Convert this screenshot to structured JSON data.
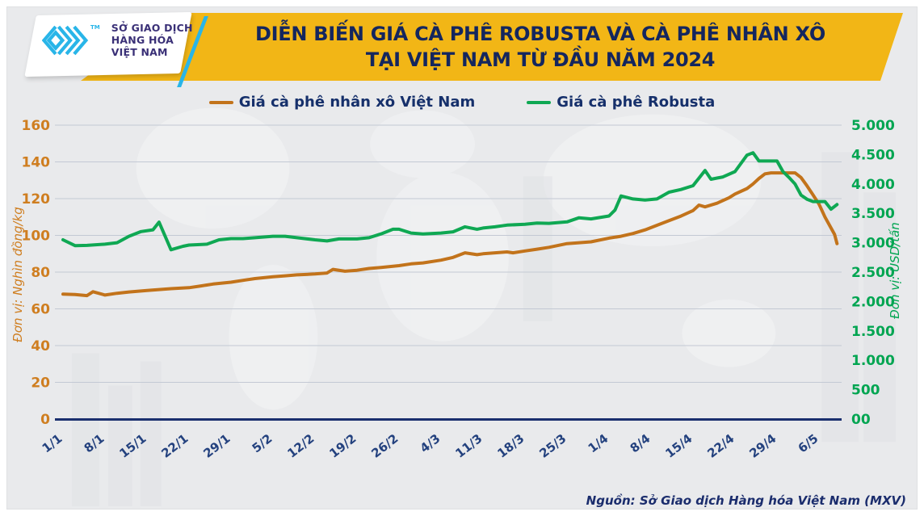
{
  "logo": {
    "trademark": "TM",
    "org_lines": [
      "SỞ GIAO DỊCH",
      "HÀNG HÓA",
      "VIỆT NAM"
    ]
  },
  "header": {
    "title_line1": "DIỄN BIẾN GIÁ CÀ PHÊ ROBUSTA VÀ CÀ PHÊ NHÂN XÔ",
    "title_line2": "TẠI VIỆT NAM TỪ ĐẦU NĂM 2024"
  },
  "footer": {
    "source": "Nguồn: Sở Giao dịch Hàng hóa Việt Nam (MXV)"
  },
  "colors": {
    "banner_yellow": "#f2b616",
    "title_navy": "#14265e",
    "axis_navy": "#1a2f6e",
    "xlabel_navy": "#23417e",
    "gridline": "#c3c9d4",
    "cyan_brand": "#29b5e8",
    "logo_text": "#3a3077"
  },
  "chart_data": {
    "type": "line",
    "title": "DIỄN BIẾN GIÁ CÀ PHÊ ROBUSTA VÀ CÀ PHÊ NHÂN XÔ TẠI VIỆT NAM TỪ ĐẦU NĂM 2024",
    "grid": true,
    "legend_position": "top",
    "x_axis": {
      "tick_labels": [
        "1/1",
        "8/1",
        "15/1",
        "22/1",
        "29/1",
        "5/2",
        "12/2",
        "19/2",
        "26/2",
        "4/3",
        "11/3",
        "18/3",
        "25/3",
        "1/4",
        "8/4",
        "15/4",
        "22/4",
        "29/4",
        "6/5"
      ],
      "days_per_tick": 7
    },
    "y_left": {
      "unit_label": "Đơn vị: Nghìn đồng/kg",
      "color_label": "#cf7e20",
      "min": 0,
      "max": 160,
      "ticks": [
        0,
        20,
        40,
        60,
        80,
        100,
        120,
        140,
        160
      ]
    },
    "y_right": {
      "unit_label": "Đơn vị: USD/tấn",
      "color_label": "#00a551",
      "min": 0,
      "max": 5000,
      "tick_step": 500,
      "ticks": [
        "00",
        "500",
        "1.000",
        "1.500",
        "2.000",
        "2.500",
        "3.000",
        "3.500",
        "4.000",
        "4.500",
        "5.000"
      ]
    },
    "series": [
      {
        "name": "Giá cà phê nhân xô Việt Nam",
        "axis": "left",
        "unit": "nghìn đồng/kg",
        "color": "#c2731b",
        "points_day_value": [
          [
            0,
            68
          ],
          [
            2,
            67.8
          ],
          [
            4,
            67.2
          ],
          [
            5,
            69.3
          ],
          [
            7,
            67.5
          ],
          [
            9,
            68.5
          ],
          [
            11,
            69.2
          ],
          [
            14,
            70
          ],
          [
            16,
            70.5
          ],
          [
            18,
            71
          ],
          [
            21,
            71.5
          ],
          [
            23,
            72.5
          ],
          [
            25,
            73.5
          ],
          [
            28,
            74.5
          ],
          [
            30,
            75.5
          ],
          [
            32,
            76.5
          ],
          [
            35,
            77.5
          ],
          [
            37,
            78
          ],
          [
            39,
            78.5
          ],
          [
            42,
            79
          ],
          [
            44,
            79.5
          ],
          [
            45,
            81.5
          ],
          [
            47,
            80.5
          ],
          [
            49,
            81
          ],
          [
            51,
            82
          ],
          [
            53,
            82.5
          ],
          [
            56,
            83.5
          ],
          [
            58,
            84.5
          ],
          [
            60,
            85
          ],
          [
            63,
            86.5
          ],
          [
            65,
            88
          ],
          [
            67,
            90.5
          ],
          [
            69,
            89.5
          ],
          [
            70,
            90
          ],
          [
            72,
            90.5
          ],
          [
            74,
            91
          ],
          [
            75,
            90.5
          ],
          [
            77,
            91.5
          ],
          [
            79,
            92.5
          ],
          [
            81,
            93.5
          ],
          [
            84,
            95.5
          ],
          [
            86,
            96
          ],
          [
            88,
            96.5
          ],
          [
            91,
            98.5
          ],
          [
            93,
            99.5
          ],
          [
            95,
            101
          ],
          [
            97,
            103
          ],
          [
            99,
            105.5
          ],
          [
            101,
            108
          ],
          [
            103,
            110.5
          ],
          [
            105,
            113.5
          ],
          [
            106,
            116.5
          ],
          [
            107,
            115.5
          ],
          [
            109,
            117.5
          ],
          [
            111,
            120.5
          ],
          [
            112,
            122.5
          ],
          [
            114,
            125.5
          ],
          [
            115,
            128
          ],
          [
            116,
            131
          ],
          [
            117,
            133.5
          ],
          [
            118,
            134
          ],
          [
            120,
            134
          ],
          [
            122,
            134
          ],
          [
            123,
            131.5
          ],
          [
            124,
            127
          ],
          [
            125,
            122
          ],
          [
            126,
            117
          ],
          [
            127,
            110
          ],
          [
            128,
            104
          ],
          [
            128.6,
            100.5
          ],
          [
            129,
            95.5
          ]
        ]
      },
      {
        "name": "Giá cà phê Robusta",
        "axis": "right",
        "unit": "USD/tấn",
        "color": "#0fa853",
        "points_day_value": [
          [
            0,
            3050
          ],
          [
            2,
            2950
          ],
          [
            4,
            2955
          ],
          [
            7,
            2975
          ],
          [
            9,
            3000
          ],
          [
            11,
            3110
          ],
          [
            13,
            3190
          ],
          [
            15,
            3220
          ],
          [
            16,
            3350
          ],
          [
            18,
            2880
          ],
          [
            20,
            2940
          ],
          [
            21,
            2960
          ],
          [
            24,
            2975
          ],
          [
            26,
            3050
          ],
          [
            28,
            3070
          ],
          [
            30,
            3070
          ],
          [
            32,
            3085
          ],
          [
            35,
            3110
          ],
          [
            37,
            3110
          ],
          [
            39,
            3085
          ],
          [
            42,
            3050
          ],
          [
            44,
            3030
          ],
          [
            46,
            3065
          ],
          [
            49,
            3065
          ],
          [
            51,
            3085
          ],
          [
            53,
            3150
          ],
          [
            55,
            3230
          ],
          [
            56,
            3230
          ],
          [
            58,
            3165
          ],
          [
            60,
            3150
          ],
          [
            63,
            3165
          ],
          [
            65,
            3185
          ],
          [
            67,
            3270
          ],
          [
            69,
            3230
          ],
          [
            70,
            3250
          ],
          [
            72,
            3270
          ],
          [
            74,
            3300
          ],
          [
            77,
            3315
          ],
          [
            79,
            3335
          ],
          [
            81,
            3330
          ],
          [
            84,
            3355
          ],
          [
            86,
            3425
          ],
          [
            88,
            3405
          ],
          [
            91,
            3455
          ],
          [
            92,
            3555
          ],
          [
            93,
            3795
          ],
          [
            95,
            3745
          ],
          [
            97,
            3725
          ],
          [
            99,
            3745
          ],
          [
            101,
            3860
          ],
          [
            103,
            3905
          ],
          [
            105,
            3970
          ],
          [
            107,
            4230
          ],
          [
            108,
            4080
          ],
          [
            110,
            4120
          ],
          [
            112,
            4210
          ],
          [
            114,
            4490
          ],
          [
            115,
            4530
          ],
          [
            116,
            4390
          ],
          [
            118,
            4390
          ],
          [
            119,
            4390
          ],
          [
            120,
            4210
          ],
          [
            121,
            4110
          ],
          [
            122,
            4000
          ],
          [
            123,
            3810
          ],
          [
            124,
            3740
          ],
          [
            125,
            3700
          ],
          [
            126,
            3700
          ],
          [
            127,
            3700
          ],
          [
            128,
            3570
          ],
          [
            129,
            3650
          ]
        ]
      }
    ],
    "source": "Nguồn: Sở Giao dịch Hàng hóa Việt Nam (MXV)"
  }
}
